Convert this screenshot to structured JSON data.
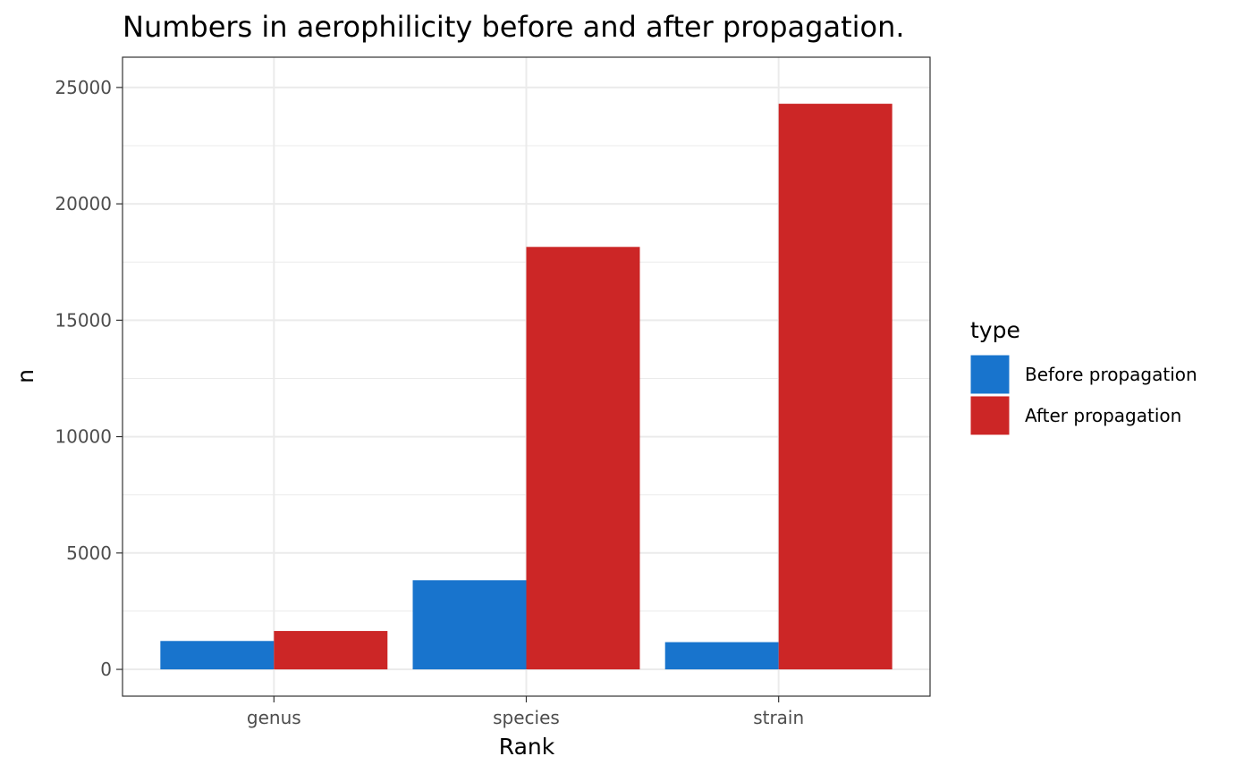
{
  "chart_data": {
    "type": "bar",
    "title": "Numbers in aerophilicity before and after propagation.",
    "xlabel": "Rank",
    "ylabel": "n",
    "categories": [
      "genus",
      "species",
      "strain"
    ],
    "series": [
      {
        "name": "Before propagation",
        "color": "#1874CD",
        "values": [
          1220,
          3830,
          1170
        ]
      },
      {
        "name": "After propagation",
        "color": "#CC2626",
        "values": [
          1650,
          18150,
          24300
        ]
      }
    ],
    "ylim": [
      -1150,
      26300
    ],
    "yticks": [
      0,
      5000,
      10000,
      15000,
      20000,
      25000
    ],
    "ytick_labels": [
      "0",
      "5000",
      "10000",
      "15000",
      "20000",
      "25000"
    ],
    "legend": {
      "title": "type",
      "placement": "right"
    },
    "grid": true,
    "theme": "bw"
  }
}
